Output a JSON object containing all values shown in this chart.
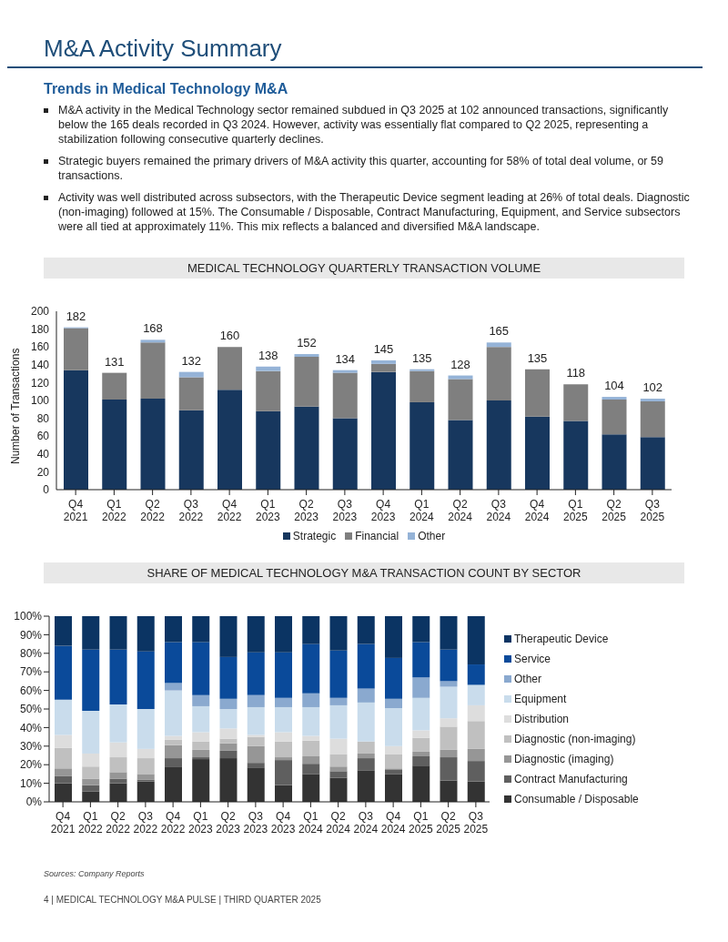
{
  "chart_data": [
    {
      "type": "bar",
      "title": "MEDICAL TECHNOLOGY QUARTERLY TRANSACTION VOLUME",
      "ylabel": "Number of Transactions",
      "stacked": true,
      "legend": "bottom",
      "annotations": [
        "M&A Activity Summary",
        "Trends in Medical Technology M&A",
        "M&A activity in the Medical Technology sector remained subdued in Q3 2025 at 102 announced transactions, significantly below the 165 deals recorded in Q3 2024. However, activity was essentially flat compared to Q2 2025, representing a stabilization following consecutive quarterly declines.",
        "Strategic buyers remained the primary drivers of M&A activity this quarter, accounting for 58% of total deal volume, or 59 transactions.",
        "Activity was well distributed across subsectors, with the Therapeutic Device segment leading at 26% of total deals. Diagnostic (non-imaging) followed at 15%. The Consumable / Disposable, Contract Manufacturing, Equipment, and Service subsectors were all tied at approximately 11%. This mix reflects a balanced and diversified M&A landscape."
      ],
      "categories": [
        "Q4 2021",
        "Q1 2022",
        "Q2 2022",
        "Q3 2022",
        "Q4 2022",
        "Q1 2023",
        "Q2 2023",
        "Q3 2023",
        "Q4 2023",
        "Q1 2024",
        "Q2 2024",
        "Q3 2024",
        "Q4 2024",
        "Q1 2025",
        "Q2 2025",
        "Q3 2025"
      ],
      "ylim": [
        0,
        200
      ],
      "yticks": [
        0,
        20,
        40,
        60,
        80,
        100,
        120,
        140,
        160,
        180,
        200
      ],
      "totals": [
        "182",
        "131",
        "168",
        "132",
        "160",
        "138",
        "152",
        "134",
        "145",
        "135",
        "128",
        "165",
        "135",
        "118",
        "104",
        "102"
      ],
      "series": [
        {
          "name": "Strategic",
          "color": "#17375e",
          "values": [
            134,
            101,
            102,
            89,
            112,
            88,
            93,
            80,
            132,
            98,
            78,
            100,
            82,
            77,
            62,
            59
          ]
        },
        {
          "name": "Financial",
          "color": "#7f7f7f",
          "values": [
            47,
            30,
            63,
            37,
            48,
            45,
            56,
            51,
            9,
            35,
            46,
            60,
            53,
            41,
            39,
            40
          ]
        },
        {
          "name": "Other",
          "color": "#95b3d7",
          "values": [
            1,
            0,
            3,
            6,
            0,
            5,
            3,
            3,
            4,
            2,
            4,
            5,
            0,
            0,
            3,
            3
          ]
        }
      ]
    },
    {
      "type": "bar",
      "title": "SHARE OF MEDICAL TECHNOLOGY M&A TRANSACTION COUNT BY SECTOR",
      "stacked": true,
      "legend": "right",
      "annotations": [
        "Sources: Company Reports",
        "4 | MEDICAL TECHNOLOGY M&A PULSE | THIRD QUARTER 2025"
      ],
      "categories": [
        "Q4 2021",
        "Q1 2022",
        "Q2 2022",
        "Q3 2022",
        "Q4 2022",
        "Q1 2023",
        "Q2 2023",
        "Q3 2023",
        "Q4 2023",
        "Q1 2024",
        "Q2 2024",
        "Q3 2024",
        "Q4 2024",
        "Q1 2025",
        "Q2 2025",
        "Q3 2025"
      ],
      "ylim": [
        0,
        100
      ],
      "yticks": [
        {
          "value": 0,
          "label": "0%"
        },
        {
          "value": 10,
          "label": "10%"
        },
        {
          "value": 20,
          "label": "20%"
        },
        {
          "value": 30,
          "label": "30%"
        },
        {
          "value": 40,
          "label": "40%"
        },
        {
          "value": 50,
          "label": "50%"
        },
        {
          "value": 60,
          "label": "60%"
        },
        {
          "value": 70,
          "label": "70%"
        },
        {
          "value": 80,
          "label": "80%"
        },
        {
          "value": 90,
          "label": "90%"
        },
        {
          "value": 100,
          "label": "100%"
        }
      ],
      "series": [
        {
          "name": "Consumable / Disposable",
          "color": "#333333",
          "values": [
            10,
            5.5,
            10,
            11,
            19,
            23,
            23.5,
            18.5,
            9,
            15,
            13,
            17,
            15,
            19.5,
            11.5,
            11
          ]
        },
        {
          "name": "Contract Manufacturing",
          "color": "#5f5f5f",
          "values": [
            4,
            3.5,
            2.5,
            1,
            4.5,
            1,
            4,
            2.5,
            13.5,
            5.5,
            3.5,
            6.5,
            2.5,
            5,
            12.5,
            11
          ]
        },
        {
          "name": "Diagnostic (imaging)",
          "color": "#969696",
          "values": [
            4,
            3.5,
            3.5,
            3,
            7,
            4,
            4,
            9,
            1.5,
            4,
            2.5,
            2.5,
            0.5,
            2.5,
            4,
            6.5
          ]
        },
        {
          "name": "Diagnostic (non-imaging)",
          "color": "#c0c0c0",
          "values": [
            11,
            6.5,
            8,
            8.5,
            3,
            4.5,
            2.5,
            5,
            8.5,
            8.5,
            6.5,
            6.5,
            7.5,
            7.5,
            12.5,
            15
          ]
        },
        {
          "name": "Distribution",
          "color": "#dddddd",
          "values": [
            7,
            7,
            8,
            5,
            2,
            5,
            5.5,
            1,
            5,
            2.5,
            8.5,
            null,
            4.5,
            4,
            4.5,
            8.5
          ]
        },
        {
          "name": "Equipment",
          "color": "#c9dcec",
          "values": [
            19,
            23,
            20.5,
            21.5,
            24.5,
            14,
            10.5,
            15,
            13.5,
            15.5,
            18,
            21,
            20.5,
            17.5,
            17,
            11
          ]
        },
        {
          "name": "Other",
          "color": "#8aa9cf",
          "values": [
            0,
            0,
            0,
            0,
            4,
            6,
            5.5,
            6.5,
            5,
            7.5,
            4,
            7.5,
            5,
            11,
            3,
            0
          ]
        },
        {
          "name": "Service",
          "color": "#0a4a9a",
          "values": [
            29,
            33,
            29.5,
            31,
            22,
            28.5,
            22.5,
            23,
            24.5,
            26.5,
            25.5,
            24,
            22,
            19,
            17,
            11
          ]
        },
        {
          "name": "Therapeutic Device",
          "color": "#0b3463",
          "values": [
            16,
            18,
            18,
            19,
            14,
            14,
            22,
            19.5,
            19.5,
            15,
            18.5,
            15,
            22.5,
            14,
            18,
            26
          ]
        }
      ]
    }
  ]
}
